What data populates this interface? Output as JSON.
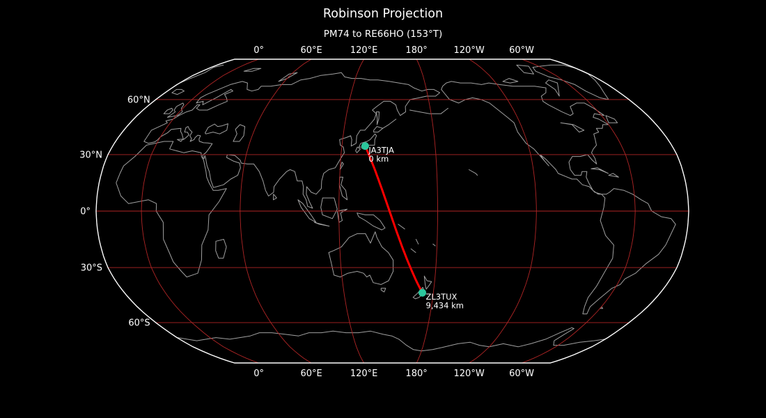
{
  "header": {
    "title": "Robinson Projection",
    "subtitle": "PM74 to RE66HO (153°T)"
  },
  "axes": {
    "top_labels": [
      "0°",
      "60°E",
      "120°E",
      "180°",
      "120°W",
      "60°W"
    ],
    "bottom_labels": [
      "0°",
      "60°E",
      "120°E",
      "180°",
      "120°W",
      "60°W"
    ],
    "left_labels": [
      "60°N",
      "30°N",
      "0°",
      "30°S",
      "60°S"
    ],
    "lon_values": [
      0,
      60,
      120,
      180,
      -120,
      -60
    ],
    "lat_values": [
      60,
      30,
      0,
      -30,
      -60
    ]
  },
  "path": {
    "from_grid": "PM74",
    "to_grid": "RE66HO",
    "bearing": "153°T"
  },
  "stations": [
    {
      "callsign": "JA3TJA",
      "distance": "0 km",
      "lat": 34.55,
      "lon": 135.0
    },
    {
      "callsign": "ZL3TUX",
      "distance": "9,434 km",
      "lat": -43.4,
      "lon": 172.63
    }
  ],
  "projection": {
    "name": "Robinson",
    "central_longitude": 152.5
  },
  "colors": {
    "background": "#000000",
    "boundary": "#ffffff",
    "coastline": "#a0a0a0",
    "graticule": "#b02525",
    "path": "#ff0000",
    "marker": "#2cc79d",
    "text": "#ffffff"
  }
}
